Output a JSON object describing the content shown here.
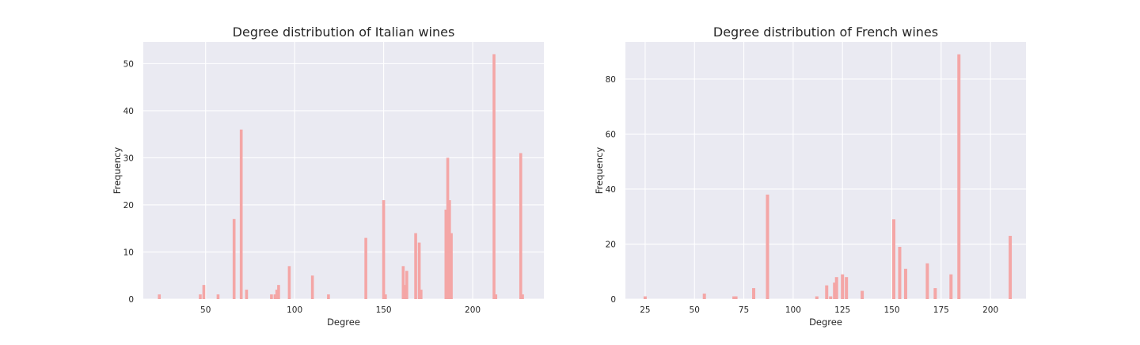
{
  "chart_data": [
    {
      "type": "bar",
      "title": "Degree distribution of Italian wines",
      "xlabel": "Degree",
      "ylabel": "Frequency",
      "xlim": [
        15,
        240
      ],
      "ylim": [
        0,
        54.6
      ],
      "xticks": [
        50,
        100,
        150,
        200
      ],
      "yticks": [
        0,
        10,
        20,
        30,
        40,
        50
      ],
      "grid": true,
      "bar_color": "#f4a6a6",
      "background_color": "#eaeaf2",
      "grid_color": "#ffffff",
      "bar_width": 1.6,
      "x": [
        24,
        47,
        49,
        57,
        66,
        70,
        73,
        87,
        89,
        90,
        91,
        97,
        110,
        119,
        140,
        150,
        151,
        161,
        162,
        163,
        168,
        170,
        171,
        185,
        186,
        187,
        188,
        212,
        213,
        227,
        228
      ],
      "values": [
        1,
        1,
        3,
        1,
        17,
        36,
        2,
        1,
        1,
        2,
        3,
        7,
        5,
        1,
        13,
        21,
        1,
        7,
        3,
        6,
        14,
        12,
        2,
        19,
        30,
        21,
        14,
        52,
        1,
        31,
        1
      ]
    },
    {
      "type": "bar",
      "title": "Degree distribution of French wines",
      "xlabel": "Degree",
      "ylabel": "Frequency",
      "xlim": [
        15,
        218
      ],
      "ylim": [
        0,
        93.5
      ],
      "xticks": [
        25,
        50,
        75,
        100,
        125,
        150,
        175,
        200
      ],
      "yticks": [
        0,
        20,
        40,
        60,
        80
      ],
      "grid": true,
      "bar_color": "#f4a6a6",
      "background_color": "#eaeaf2",
      "grid_color": "#ffffff",
      "bar_width": 1.6,
      "x": [
        25,
        55,
        70,
        71,
        80,
        87,
        112,
        117,
        119,
        121,
        122,
        125,
        127,
        135,
        151,
        154,
        157,
        168,
        172,
        180,
        184,
        210
      ],
      "values": [
        1,
        2,
        1,
        1,
        4,
        38,
        1,
        5,
        1,
        6,
        8,
        9,
        8,
        3,
        29,
        19,
        11,
        13,
        4,
        9,
        89,
        23
      ]
    }
  ]
}
